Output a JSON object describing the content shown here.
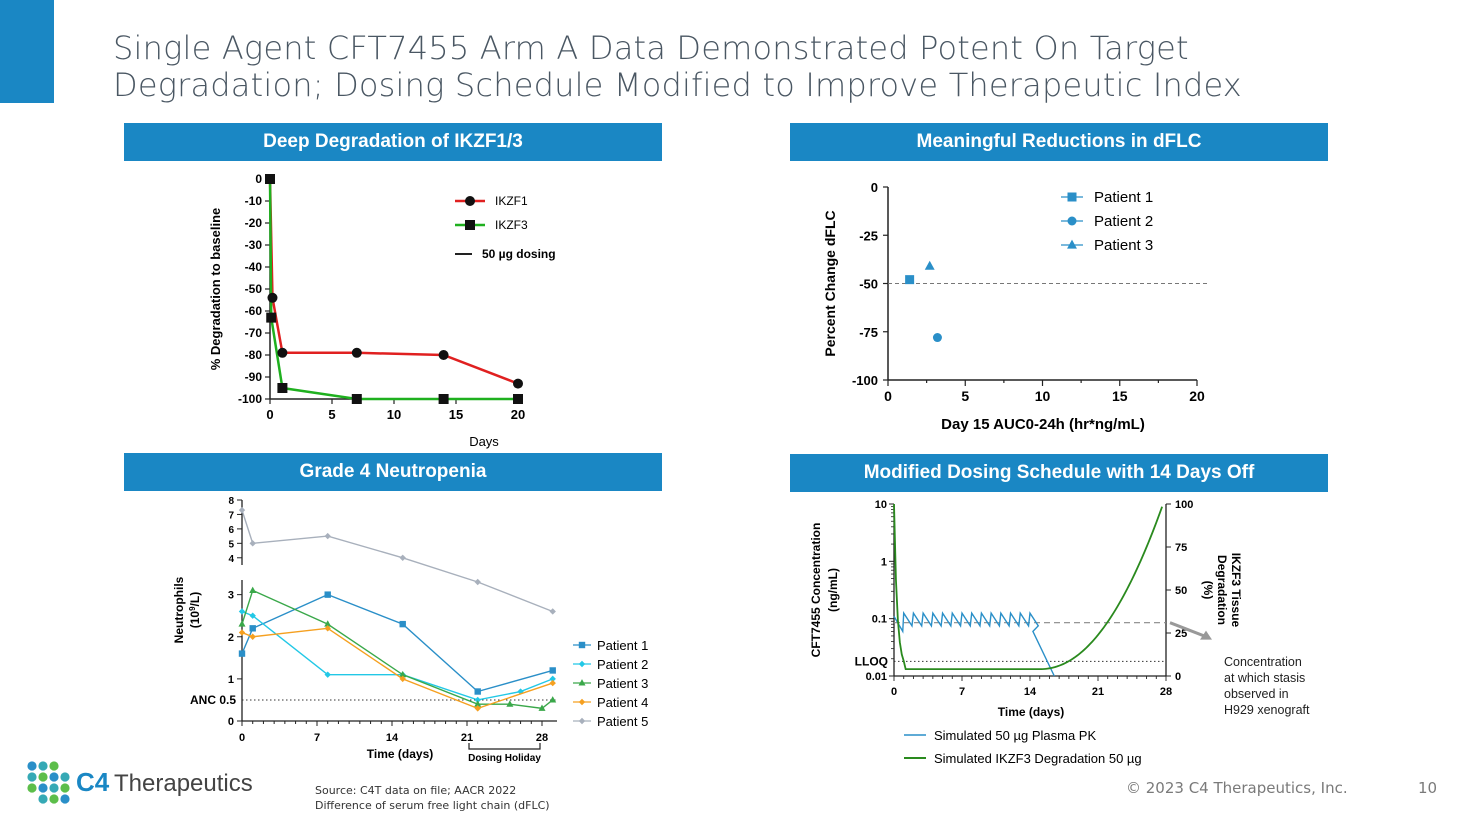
{
  "title_line1": "Single Agent CFT7455 Arm A Data Demonstrated Potent On Target",
  "title_line2": "Degradation; Dosing Schedule Modified to Improve Therapeutic Index",
  "colors": {
    "accent": "#1a87c4",
    "ikzf1": "#e02020",
    "ikzf3": "#1fb01f",
    "pk": "#2a8fc8",
    "degradation": "#2a8a1e"
  },
  "panels": {
    "p1": "Deep Degradation of IKZF1/3",
    "p2": "Meaningful Reductions in dFLC",
    "p3": "Grade 4 Neutropenia",
    "p4": "Modified Dosing Schedule with 14 Days Off"
  },
  "chart_data": [
    {
      "type": "line",
      "ylabel": "% Degradation to baseline",
      "xlabel": "Days",
      "xlim": [
        0,
        20
      ],
      "ylim": [
        -100,
        0
      ],
      "xticks": [
        "0",
        "5",
        "10",
        "15",
        "20"
      ],
      "yticks": [
        "0",
        "-10",
        "-20",
        "-30",
        "-40",
        "-50",
        "-60",
        "-70",
        "-80",
        "-90",
        "-100"
      ],
      "legend": [
        "IKZF1",
        "IKZF3",
        "50 µg dosing"
      ],
      "series": [
        {
          "name": "IKZF1",
          "x": [
            0,
            0.2,
            1,
            7,
            14,
            20
          ],
          "y": [
            0,
            -54,
            -79,
            -79,
            -80,
            -93
          ]
        },
        {
          "name": "IKZF3",
          "x": [
            0,
            0.1,
            1,
            7,
            14,
            20
          ],
          "y": [
            0,
            -63,
            -95,
            -100,
            -100,
            -100
          ]
        }
      ]
    },
    {
      "type": "scatter",
      "ylabel": "Percent Change dFLC",
      "xlabel": "Day 15 AUC0-24h (hr*ng/mL)",
      "xlim": [
        0,
        20
      ],
      "ylim": [
        -100,
        0
      ],
      "xticks": [
        "0",
        "5",
        "10",
        "15",
        "20"
      ],
      "yticks": [
        "0",
        "-25",
        "-50",
        "-75",
        "-100"
      ],
      "reference_line": -50,
      "series": [
        {
          "name": "Patient 1",
          "x": [
            1.4
          ],
          "y": [
            -48
          ]
        },
        {
          "name": "Patient 2",
          "x": [
            3.2
          ],
          "y": [
            -78
          ]
        },
        {
          "name": "Patient 3",
          "x": [
            2.7
          ],
          "y": [
            -41
          ]
        }
      ]
    },
    {
      "type": "line",
      "ylabel": "Neutrophils",
      "ylabel_unit_pre": "(10",
      "ylabel_unit_sup": "9",
      "ylabel_unit_post": "/L)",
      "xlabel": "Time (days)",
      "xticks": [
        "0",
        "7",
        "14",
        "21",
        "28"
      ],
      "yticks_low": [
        "0",
        "1",
        "2",
        "3"
      ],
      "yticks_high": [
        "4",
        "5",
        "6",
        "7",
        "8"
      ],
      "anc_label": "ANC 0.5",
      "anc_value": 0.5,
      "bracket_label": "Dosing Holiday",
      "series": [
        {
          "name": "Patient 1",
          "x": [
            0,
            1,
            8,
            15,
            22,
            29
          ],
          "y": [
            1.6,
            2.2,
            3.0,
            2.3,
            0.7,
            1.2
          ]
        },
        {
          "name": "Patient 2",
          "x": [
            0,
            1,
            8,
            15,
            22,
            26,
            29
          ],
          "y": [
            2.6,
            2.5,
            1.1,
            1.1,
            0.5,
            0.7,
            1.0
          ]
        },
        {
          "name": "Patient 3",
          "x": [
            0,
            1,
            8,
            15,
            22,
            25,
            28,
            29
          ],
          "y": [
            2.3,
            3.1,
            2.3,
            1.1,
            0.4,
            0.4,
            0.3,
            0.5
          ]
        },
        {
          "name": "Patient 4",
          "x": [
            0,
            1,
            8,
            15,
            22,
            29
          ],
          "y": [
            2.1,
            2.0,
            2.2,
            1.0,
            0.3,
            0.9
          ]
        },
        {
          "name": "Patient 5",
          "x": [
            0,
            1,
            8,
            15,
            22,
            29
          ],
          "y": [
            7.3,
            5.0,
            5.5,
            4.0,
            3.3,
            2.6
          ]
        }
      ]
    },
    {
      "type": "line",
      "ylabel": "CFT7455 Concentration (ng/mL)",
      "ylabel_l1": "CFT7455 Concentration",
      "ylabel_l2": "(ng/mL)",
      "y2label_l1": "IKZF3 Tissue",
      "y2label_l2": "Degradation",
      "y2label_l3": "(%)",
      "xlabel": "Time (days)",
      "xticks": [
        "0",
        "7",
        "14",
        "21",
        "28"
      ],
      "yticks": [
        "0.01",
        "0.1",
        "1",
        "10"
      ],
      "y2ticks": [
        "0",
        "25",
        "50",
        "75",
        "100"
      ],
      "lloq_label": "LLOQ",
      "annotation": [
        "Concentration",
        "at which stasis",
        "observed in",
        "H929 xenograft"
      ],
      "legend": [
        "Simulated 50 µg Plasma PK",
        "Simulated IKZF3 Degradation 50 µg"
      ]
    }
  ],
  "footer": {
    "source": "Source:  C4T data on file; AACR 2022",
    "note": "Difference of serum free light chain (dFLC)",
    "copyright": "© 2023 C4 Therapeutics, Inc.",
    "page": "10",
    "logo_c4": "C4",
    "logo_rest": "Therapeutics"
  }
}
